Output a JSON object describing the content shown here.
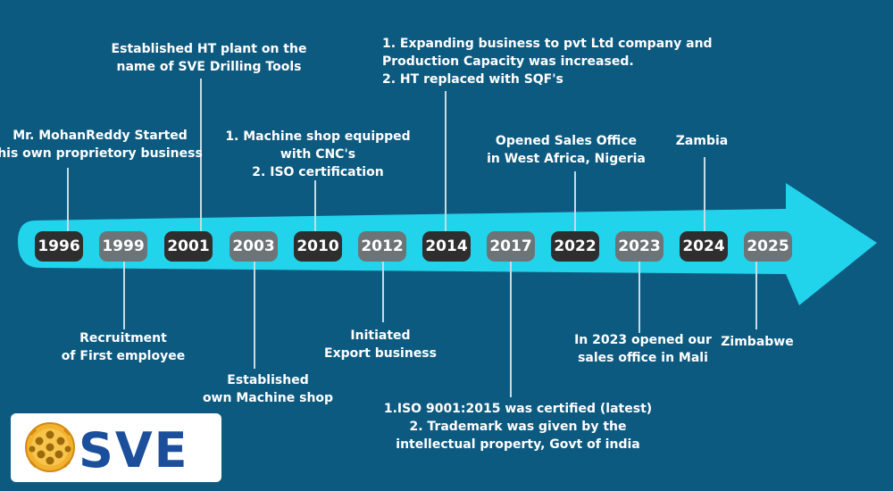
{
  "years": [
    "1996",
    "1999",
    "2001",
    "2003",
    "2010",
    "2012",
    "2014",
    "2017",
    "2022",
    "2023",
    "2024",
    "2025"
  ],
  "events": {
    "e1996": [
      "Mr. MohanReddy Started",
      "his own proprietory business"
    ],
    "e1999": [
      "Recruitment",
      "of First employee"
    ],
    "e2001": [
      "Established HT plant on the",
      "name of SVE Drilling Tools"
    ],
    "e2003": [
      "Established",
      "own Machine shop"
    ],
    "e2010": [
      "1. Machine shop equipped",
      "with CNC's",
      "2. ISO certification"
    ],
    "e2012": [
      "Initiated",
      "Export business"
    ],
    "e2014": [
      "1. Expanding business to pvt Ltd company and",
      "Production Capacity was increased.",
      "2. HT replaced with SQF's"
    ],
    "e2017": [
      "1.ISO 9001:2015 was certified (latest)",
      "2. Trademark was given by the",
      "intellectual property, Govt of india"
    ],
    "e2022": [
      "Opened Sales Office",
      "in West Africa, Nigeria"
    ],
    "e2023": [
      "In 2023 opened our",
      "sales office in Mali"
    ],
    "e2024": [
      "Zambia"
    ],
    "e2025": [
      "Zimbabwe"
    ]
  },
  "logo": {
    "text": "SVE",
    "icon": "drill-bit-icon"
  },
  "colors": {
    "background": "#0d5a80",
    "arrow": "#22d3ec",
    "dark_badge": "#2e2e2e",
    "gray_badge": "#6d7478",
    "logo_blue": "#1b4f9c"
  }
}
